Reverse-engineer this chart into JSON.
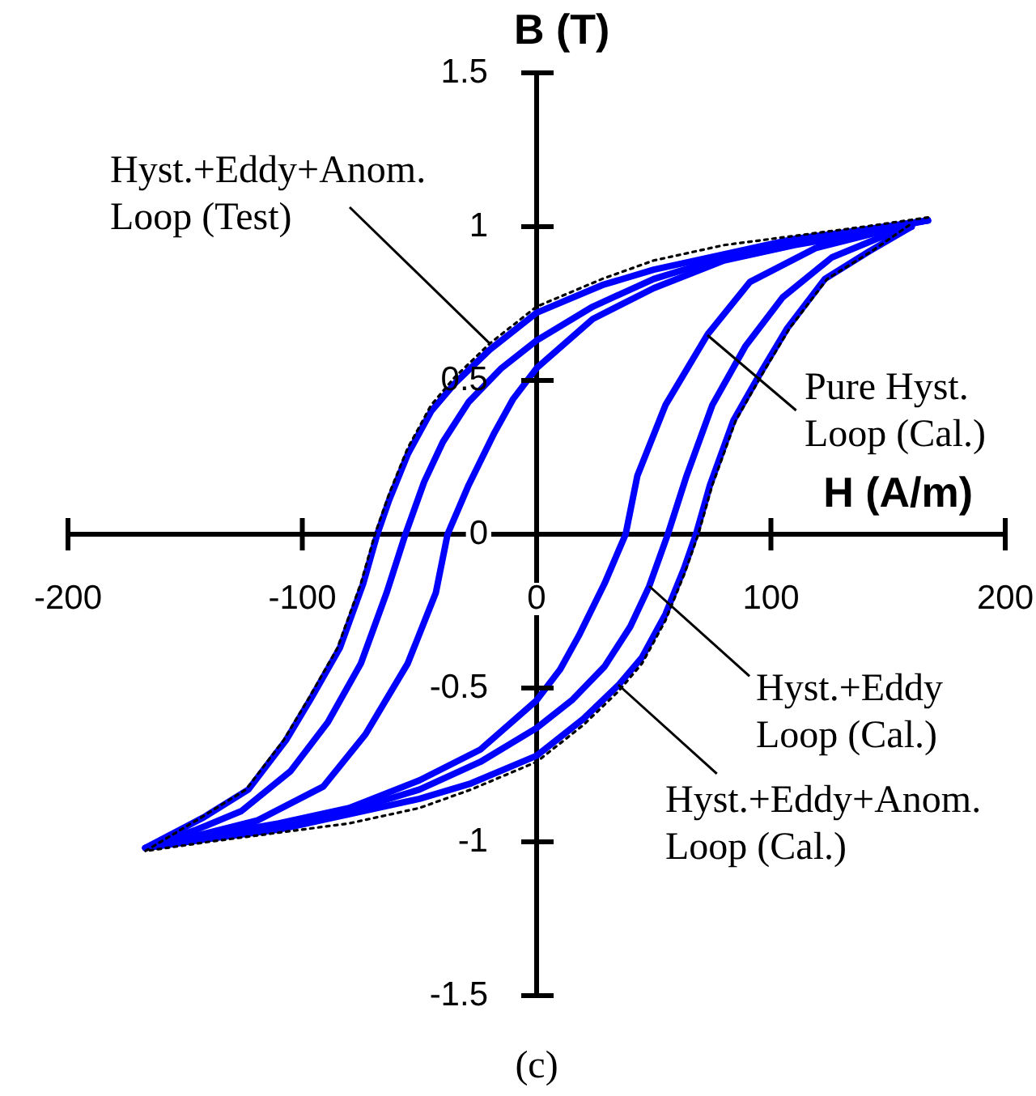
{
  "chart_data": {
    "type": "line",
    "xlabel": "H (A/m)",
    "ylabel": "B (T)",
    "annotations": [
      {
        "text": "Hyst.+Eddy+Anom. Loop (Test)",
        "x": -20,
        "y": 0.62
      },
      {
        "text": "Pure Hyst. Loop (Cal.)",
        "x": 73,
        "y": 0.65
      },
      {
        "text": "Hyst.+Eddy Loop (Cal.)",
        "x": 48,
        "y": -0.17
      },
      {
        "text": "Hyst.+Eddy+Anom. Loop (Cal.)",
        "x": 35,
        "y": -0.49
      },
      "(c)"
    ],
    "xlim": [
      -200,
      200
    ],
    "xticks": [
      -200,
      -100,
      0,
      100,
      200
    ],
    "ylim": [
      -1.5,
      1.5
    ],
    "yticks": [
      -1.5,
      -1,
      -0.5,
      0,
      0.5,
      1,
      1.5
    ],
    "marker": "none",
    "line_style": "solid",
    "series": [
      {
        "color": "#000000",
        "line_style": "dotted",
        "x": [
          167,
          140,
          110,
          80,
          50,
          28,
          0,
          -20,
          -35,
          -45,
          -55,
          -63,
          -69,
          -75,
          -85,
          -97,
          -108,
          -124,
          -143,
          -167,
          -140,
          -110,
          -80,
          -50,
          -28,
          0,
          20,
          35,
          45,
          55,
          63,
          69,
          75,
          85,
          97,
          108,
          124,
          143,
          160
        ],
        "values": [
          1.03,
          1.0,
          0.97,
          0.94,
          0.89,
          0.83,
          0.74,
          0.62,
          0.51,
          0.42,
          0.28,
          0.13,
          0,
          -0.16,
          -0.37,
          -0.53,
          -0.67,
          -0.83,
          -0.92,
          -1.03,
          -1.0,
          -0.97,
          -0.94,
          -0.89,
          -0.83,
          -0.74,
          -0.62,
          -0.51,
          -0.42,
          -0.28,
          -0.13,
          0,
          0.16,
          0.37,
          0.53,
          0.67,
          0.83,
          0.92,
          1.01
        ]
      },
      {
        "color": "#0000ff",
        "x": [
          167,
          140,
          110,
          80,
          50,
          24,
          0,
          -10,
          -18,
          -29,
          -38,
          -43,
          -55,
          -73,
          -91,
          -119,
          -145,
          -167,
          -140,
          -110,
          -80,
          -50,
          -24,
          0,
          10,
          18,
          29,
          38,
          43,
          55,
          73,
          91,
          119,
          145,
          160
        ],
        "values": [
          1.02,
          0.98,
          0.94,
          0.89,
          0.8,
          0.7,
          0.54,
          0.44,
          0.33,
          0.16,
          0,
          -0.19,
          -0.42,
          -0.65,
          -0.82,
          -0.93,
          -0.98,
          -1.02,
          -0.98,
          -0.94,
          -0.89,
          -0.8,
          -0.7,
          -0.54,
          -0.44,
          -0.33,
          -0.16,
          0,
          0.19,
          0.42,
          0.65,
          0.82,
          0.93,
          0.98,
          1.0
        ]
      },
      {
        "color": "#0000ff",
        "x": [
          167,
          140,
          110,
          80,
          50,
          24,
          0,
          -15,
          -29,
          -40,
          -48,
          -56,
          -64,
          -75,
          -89,
          -105,
          -126,
          -145,
          -167,
          -140,
          -110,
          -80,
          -50,
          -24,
          0,
          15,
          29,
          40,
          48,
          56,
          64,
          75,
          89,
          105,
          126,
          145,
          160
        ],
        "values": [
          1.02,
          0.99,
          0.95,
          0.9,
          0.83,
          0.74,
          0.63,
          0.54,
          0.43,
          0.3,
          0.17,
          0,
          -0.19,
          -0.42,
          -0.61,
          -0.77,
          -0.9,
          -0.96,
          -1.02,
          -0.99,
          -0.95,
          -0.9,
          -0.83,
          -0.74,
          -0.63,
          -0.54,
          -0.43,
          -0.3,
          -0.17,
          0,
          0.19,
          0.42,
          0.61,
          0.77,
          0.9,
          0.96,
          1.0
        ]
      },
      {
        "color": "#0000ff",
        "x": [
          167,
          140,
          110,
          80,
          50,
          28,
          0,
          -20,
          -35,
          -45,
          -55,
          -63,
          -68,
          -74,
          -84,
          -96,
          -107,
          -123,
          -142,
          -167,
          -140,
          -110,
          -80,
          -50,
          -28,
          0,
          20,
          35,
          45,
          55,
          63,
          68,
          74,
          84,
          96,
          107,
          123,
          142,
          160
        ],
        "values": [
          1.02,
          0.99,
          0.96,
          0.91,
          0.86,
          0.81,
          0.72,
          0.6,
          0.49,
          0.4,
          0.26,
          0.11,
          0,
          -0.16,
          -0.37,
          -0.53,
          -0.67,
          -0.83,
          -0.92,
          -1.02,
          -0.99,
          -0.96,
          -0.91,
          -0.86,
          -0.81,
          -0.72,
          -0.6,
          -0.49,
          -0.4,
          -0.26,
          -0.11,
          0,
          0.16,
          0.37,
          0.53,
          0.67,
          0.83,
          0.92,
          1.0
        ]
      }
    ]
  }
}
